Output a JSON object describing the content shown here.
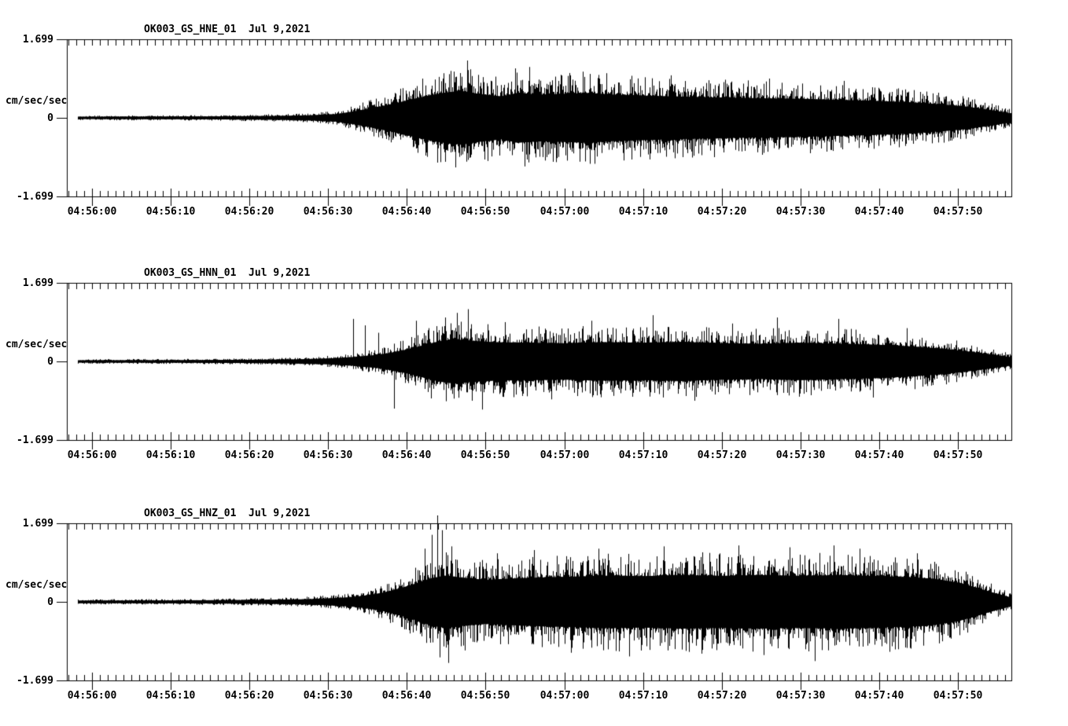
{
  "page": {
    "background_color": "#ffffff",
    "ink_color": "#000000"
  },
  "x_axis": {
    "reference_time": "04:56:00",
    "start_s": -3.2,
    "end_s": 116.9,
    "seconds_per_minor_tick": 1,
    "seconds_per_major_tick": 10,
    "major_tick_times_s": [
      0,
      10,
      20,
      30,
      40,
      50,
      60,
      70,
      80,
      90,
      100,
      110
    ],
    "major_tick_labels": [
      "04:56:00",
      "04:56:10",
      "04:56:20",
      "04:56:30",
      "04:56:40",
      "04:56:50",
      "04:57:00",
      "04:57:10",
      "04:57:20",
      "04:57:30",
      "04:57:40",
      "04:57:50"
    ]
  },
  "chart_data": [
    {
      "type": "line",
      "kind": "seismogram",
      "station_channel": "OK003_GS_HNE_01",
      "date": "Jul 9,2021",
      "title": "OK003_GS_HNE_01  Jul 9,2021",
      "ylabel": "cm/sec/sec",
      "ylim": [
        -1.699,
        1.699
      ],
      "yticks": [
        {
          "value": 1.699,
          "label": "1.699"
        },
        {
          "value": 0,
          "label": "0"
        },
        {
          "value": -1.699,
          "label": "-1.699"
        }
      ],
      "trace_start_s": -1.9,
      "seed": 101,
      "envelope_t_amp": [
        [
          -1.9,
          0.045
        ],
        [
          5,
          0.05
        ],
        [
          15,
          0.055
        ],
        [
          22,
          0.07
        ],
        [
          27,
          0.09
        ],
        [
          31,
          0.14
        ],
        [
          34,
          0.28
        ],
        [
          37,
          0.45
        ],
        [
          39,
          0.58
        ],
        [
          41,
          0.72
        ],
        [
          43,
          0.85
        ],
        [
          45,
          0.95
        ],
        [
          47,
          1.0
        ],
        [
          49,
          0.9
        ],
        [
          52,
          0.8
        ],
        [
          54,
          0.93
        ],
        [
          57,
          0.87
        ],
        [
          60,
          0.9
        ],
        [
          63,
          0.93
        ],
        [
          66,
          0.87
        ],
        [
          70,
          0.83
        ],
        [
          75,
          0.79
        ],
        [
          80,
          0.76
        ],
        [
          85,
          0.73
        ],
        [
          90,
          0.71
        ],
        [
          95,
          0.67
        ],
        [
          100,
          0.63
        ],
        [
          104,
          0.58
        ],
        [
          108,
          0.5
        ],
        [
          111,
          0.42
        ],
        [
          114,
          0.3
        ],
        [
          116.9,
          0.16
        ]
      ],
      "peak_spikes_t_amp": [
        [
          44.9,
          -0.95
        ],
        [
          46.0,
          1.0
        ],
        [
          47.7,
          1.24
        ],
        [
          48.1,
          1.05
        ],
        [
          49.9,
          -0.9
        ],
        [
          53.8,
          1.07
        ],
        [
          55.0,
          -1.05
        ],
        [
          55.6,
          1.1
        ],
        [
          58.5,
          -0.95
        ],
        [
          60.6,
          0.97
        ],
        [
          63.2,
          0.95
        ],
        [
          68.5,
          -0.9
        ],
        [
          73.5,
          0.92
        ],
        [
          79.0,
          -0.85
        ],
        [
          86.0,
          0.85
        ],
        [
          95.5,
          0.8
        ]
      ]
    },
    {
      "type": "line",
      "kind": "seismogram",
      "station_channel": "OK003_GS_HNN_01",
      "date": "Jul 9,2021",
      "title": "OK003_GS_HNN_01  Jul 9,2021",
      "ylabel": "cm/sec/sec",
      "ylim": [
        -1.699,
        1.699
      ],
      "yticks": [
        {
          "value": 1.699,
          "label": "1.699"
        },
        {
          "value": 0,
          "label": "0"
        },
        {
          "value": -1.699,
          "label": "-1.699"
        }
      ],
      "trace_start_s": -1.9,
      "seed": 202,
      "envelope_t_amp": [
        [
          -1.9,
          0.045
        ],
        [
          10,
          0.05
        ],
        [
          20,
          0.06
        ],
        [
          26,
          0.08
        ],
        [
          30,
          0.11
        ],
        [
          33,
          0.16
        ],
        [
          36,
          0.24
        ],
        [
          38,
          0.33
        ],
        [
          40,
          0.45
        ],
        [
          42,
          0.6
        ],
        [
          44,
          0.75
        ],
        [
          46,
          0.83
        ],
        [
          48,
          0.77
        ],
        [
          51,
          0.72
        ],
        [
          55,
          0.7
        ],
        [
          60,
          0.68
        ],
        [
          65,
          0.72
        ],
        [
          70,
          0.7
        ],
        [
          75,
          0.73
        ],
        [
          80,
          0.68
        ],
        [
          85,
          0.66
        ],
        [
          90,
          0.7
        ],
        [
          95,
          0.66
        ],
        [
          100,
          0.62
        ],
        [
          104,
          0.56
        ],
        [
          108,
          0.48
        ],
        [
          111,
          0.38
        ],
        [
          114,
          0.27
        ],
        [
          116.9,
          0.15
        ]
      ],
      "peak_spikes_t_amp": [
        [
          33.2,
          0.92
        ],
        [
          34.7,
          0.78
        ],
        [
          36.4,
          0.62
        ],
        [
          38.4,
          -1.02
        ],
        [
          41.2,
          0.88
        ],
        [
          43.1,
          -0.8
        ],
        [
          44.9,
          0.95
        ],
        [
          46.4,
          1.05
        ],
        [
          47.8,
          1.13
        ],
        [
          48.3,
          -0.85
        ],
        [
          49.6,
          -1.04
        ],
        [
          52.5,
          0.85
        ],
        [
          58.3,
          -0.82
        ],
        [
          63.4,
          0.88
        ],
        [
          71.2,
          1.0
        ],
        [
          76.5,
          -0.85
        ],
        [
          81.3,
          0.82
        ],
        [
          87.0,
          0.95
        ],
        [
          94.8,
          0.92
        ],
        [
          99.2,
          -0.78
        ],
        [
          103.5,
          0.72
        ]
      ]
    },
    {
      "type": "line",
      "kind": "seismogram",
      "station_channel": "OK003_GS_HNZ_01",
      "date": "Jul 9,2021",
      "title": "OK003_GS_HNZ_01  Jul 9,2021",
      "ylabel": "cm/sec/sec",
      "ylim": [
        -1.699,
        1.699
      ],
      "yticks": [
        {
          "value": 1.699,
          "label": "1.699"
        },
        {
          "value": 0,
          "label": "0"
        },
        {
          "value": -1.699,
          "label": "-1.699"
        }
      ],
      "trace_start_s": -1.9,
      "seed": 303,
      "envelope_t_amp": [
        [
          -1.9,
          0.05
        ],
        [
          10,
          0.055
        ],
        [
          20,
          0.07
        ],
        [
          26,
          0.09
        ],
        [
          30,
          0.13
        ],
        [
          33,
          0.18
        ],
        [
          35,
          0.25
        ],
        [
          37,
          0.35
        ],
        [
          39,
          0.5
        ],
        [
          41,
          0.68
        ],
        [
          43,
          0.88
        ],
        [
          45,
          0.98
        ],
        [
          47,
          0.9
        ],
        [
          50,
          0.82
        ],
        [
          54,
          0.88
        ],
        [
          58,
          0.92
        ],
        [
          62,
          0.95
        ],
        [
          66,
          0.98
        ],
        [
          70,
          0.96
        ],
        [
          75,
          1.0
        ],
        [
          80,
          0.97
        ],
        [
          85,
          1.0
        ],
        [
          90,
          0.97
        ],
        [
          95,
          1.0
        ],
        [
          100,
          0.96
        ],
        [
          104,
          0.92
        ],
        [
          107,
          0.86
        ],
        [
          110,
          0.72
        ],
        [
          112,
          0.56
        ],
        [
          114,
          0.38
        ],
        [
          116.9,
          0.15
        ]
      ],
      "peak_spikes_t_amp": [
        [
          42.3,
          1.15
        ],
        [
          43.2,
          1.45
        ],
        [
          43.9,
          1.92
        ],
        [
          44.5,
          1.55
        ],
        [
          44.2,
          -1.2
        ],
        [
          45.3,
          -1.32
        ],
        [
          45.7,
          1.2
        ],
        [
          47.4,
          -1.05
        ],
        [
          51.5,
          1.05
        ],
        [
          56.2,
          1.12
        ],
        [
          60.8,
          -1.1
        ],
        [
          64.3,
          1.15
        ],
        [
          68.2,
          -1.18
        ],
        [
          72.6,
          1.2
        ],
        [
          77.4,
          -1.12
        ],
        [
          82.1,
          1.22
        ],
        [
          85.3,
          -1.15
        ],
        [
          88.6,
          1.18
        ],
        [
          91.8,
          -1.28
        ],
        [
          94.2,
          1.22
        ],
        [
          97.5,
          1.15
        ],
        [
          101.3,
          -1.08
        ],
        [
          104.8,
          1.05
        ]
      ]
    }
  ]
}
